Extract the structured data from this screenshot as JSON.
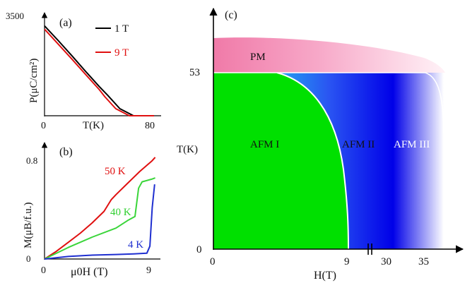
{
  "chart_data": [
    {
      "panel": "(a)",
      "type": "line",
      "xlabel": "T(K)",
      "ylabel": "P(μC/cm²)",
      "xlim": [
        0,
        80
      ],
      "ylim": [
        0,
        3500
      ],
      "xticks": [
        "0",
        "80"
      ],
      "yticks": [
        "3500"
      ],
      "legend_position": "top-right",
      "series": [
        {
          "name": "1 T",
          "color": "#000000",
          "x": [
            0,
            10,
            20,
            30,
            40,
            46,
            55,
            65,
            72,
            80
          ],
          "y": [
            3300,
            2760,
            2200,
            1630,
            1070,
            760,
            260,
            0,
            0,
            0
          ]
        },
        {
          "name": "9 T",
          "color": "#e01010",
          "x": [
            0,
            10,
            20,
            30,
            40,
            44,
            52,
            62,
            72,
            80
          ],
          "y": [
            3180,
            2630,
            2080,
            1520,
            960,
            700,
            260,
            0,
            0,
            0
          ]
        }
      ]
    },
    {
      "panel": "(b)",
      "type": "line",
      "xlabel": "μ0H (T)",
      "ylabel": "M(μB/f.u.)",
      "xlim": [
        0,
        9.5
      ],
      "ylim": [
        0,
        0.85
      ],
      "xticks": [
        "0",
        "9"
      ],
      "yticks": [
        "0",
        "0.8"
      ],
      "series": [
        {
          "name": "50 K",
          "color": "#e01010",
          "x": [
            0,
            1,
            2,
            3,
            4,
            5,
            5.6,
            6,
            7,
            8,
            9,
            9.3
          ],
          "y": [
            0,
            0.06,
            0.13,
            0.2,
            0.28,
            0.37,
            0.46,
            0.5,
            0.59,
            0.68,
            0.76,
            0.79
          ]
        },
        {
          "name": "40 K",
          "color": "#3ad53a",
          "x": [
            0,
            2,
            4,
            6,
            7,
            7.6,
            7.9,
            8.2,
            9,
            9.3
          ],
          "y": [
            0,
            0.09,
            0.17,
            0.24,
            0.3,
            0.33,
            0.55,
            0.6,
            0.62,
            0.63
          ]
        },
        {
          "name": "4 K",
          "color": "#1f2fd0",
          "x": [
            0,
            2,
            4,
            6,
            7.5,
            8.6,
            8.85,
            9.05,
            9.25
          ],
          "y": [
            0,
            0.02,
            0.03,
            0.035,
            0.04,
            0.045,
            0.1,
            0.4,
            0.58
          ]
        }
      ]
    },
    {
      "panel": "(c)",
      "type": "area",
      "xlabel": "H(T)",
      "ylabel": "T(K)",
      "xticks": [
        "0",
        "9",
        "30",
        "35"
      ],
      "yticks": [
        "0",
        "53"
      ],
      "axis_break": "between 9 and 30",
      "regions": [
        {
          "name": "PM",
          "color": "#ff7fb0"
        },
        {
          "name": "AFM I",
          "color": "#00e000"
        },
        {
          "name": "AFM II",
          "color": "#00f4f4"
        },
        {
          "name": "AFM III",
          "color": "#0000ee"
        }
      ]
    }
  ]
}
